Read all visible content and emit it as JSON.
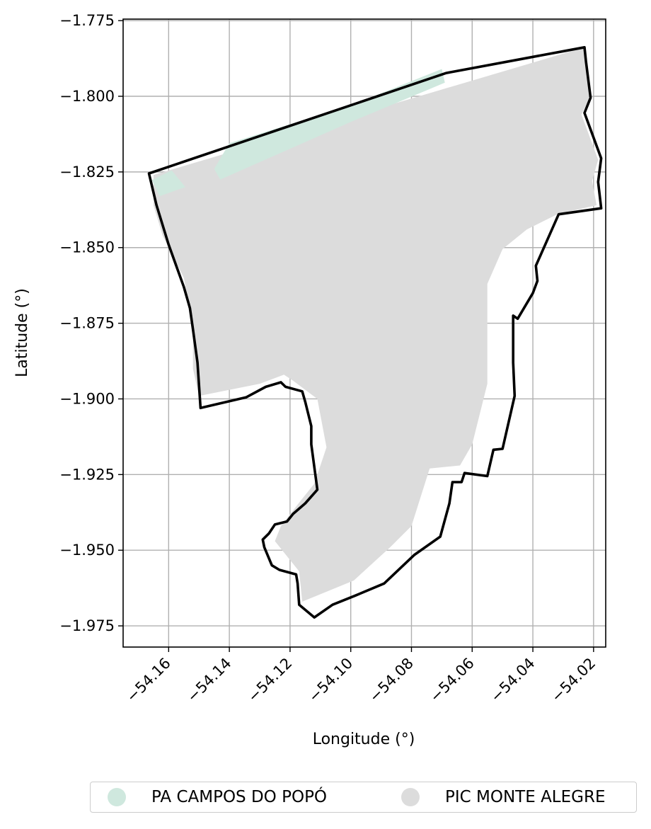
{
  "chart_data": {
    "type": "map",
    "xlabel": "Longitude (°)",
    "ylabel": "Latitude (°)",
    "xlim": [
      -54.175,
      -54.016
    ],
    "ylim": [
      -1.982,
      -1.7745
    ],
    "grid": true,
    "xticks": [
      -54.16,
      -54.14,
      -54.12,
      -54.1,
      -54.08,
      -54.06,
      -54.04,
      -54.02
    ],
    "xtick_labels": [
      "−54.16",
      "−54.14",
      "−54.12",
      "−54.10",
      "−54.08",
      "−54.06",
      "−54.04",
      "−54.02"
    ],
    "yticks": [
      -1.775,
      -1.8,
      -1.825,
      -1.85,
      -1.875,
      -1.9,
      -1.925,
      -1.95,
      -1.975
    ],
    "ytick_labels": [
      "−1.775",
      "−1.800",
      "−1.825",
      "−1.850",
      "−1.875",
      "−1.900",
      "−1.925",
      "−1.950",
      "−1.975"
    ],
    "legend_position": "bottom-center",
    "series": [
      {
        "name": "PA CAMPOS DO POPÓ",
        "color": "#cfe8de",
        "polygons": [
          [
            [
              -54.1655,
              -1.8277
            ],
            [
              -54.159,
              -1.8245
            ],
            [
              -54.1545,
              -1.83
            ],
            [
              -54.163,
              -1.833
            ]
          ],
          [
            [
              -54.145,
              -1.824
            ],
            [
              -54.14,
              -1.8155
            ],
            [
              -54.1,
              -1.803
            ],
            [
              -54.07,
              -1.791
            ],
            [
              -54.069,
              -1.7955
            ],
            [
              -54.1,
              -1.8085
            ],
            [
              -54.143,
              -1.8275
            ]
          ]
        ]
      },
      {
        "name": "PIC MONTE ALEGRE",
        "color": "#dcdcdc",
        "polygons": [
          [
            [
              -54.165,
              -1.826
            ],
            [
              -54.023,
              -1.7838
            ],
            [
              -54.0223,
              -1.788
            ],
            [
              -54.0215,
              -1.801
            ],
            [
              -54.024,
              -1.806
            ],
            [
              -54.0185,
              -1.821
            ],
            [
              -54.0205,
              -1.828
            ],
            [
              -54.019,
              -1.836
            ],
            [
              -54.032,
              -1.839
            ],
            [
              -54.042,
              -1.844
            ],
            [
              -54.05,
              -1.8505
            ],
            [
              -54.055,
              -1.862
            ],
            [
              -54.055,
              -1.895
            ],
            [
              -54.06,
              -1.915
            ],
            [
              -54.064,
              -1.922
            ],
            [
              -54.074,
              -1.923
            ],
            [
              -54.08,
              -1.942
            ],
            [
              -54.087,
              -1.949
            ],
            [
              -54.099,
              -1.96
            ],
            [
              -54.116,
              -1.967
            ],
            [
              -54.117,
              -1.957
            ],
            [
              -54.125,
              -1.947
            ],
            [
              -54.123,
              -1.942
            ],
            [
              -54.116,
              -1.933
            ],
            [
              -54.112,
              -1.928
            ],
            [
              -54.108,
              -1.916
            ],
            [
              -54.111,
              -1.9
            ],
            [
              -54.119,
              -1.894
            ],
            [
              -54.122,
              -1.892
            ],
            [
              -54.13,
              -1.895
            ],
            [
              -54.15,
              -1.899
            ],
            [
              -54.152,
              -1.89
            ],
            [
              -54.152,
              -1.876
            ],
            [
              -54.155,
              -1.86
            ],
            [
              -54.162,
              -1.846
            ],
            [
              -54.165,
              -1.836
            ]
          ]
        ]
      }
    ],
    "boundary": {
      "color": "#000000",
      "points": [
        [
          -54.1665,
          -1.8255
        ],
        [
          -54.0685,
          -1.7923
        ],
        [
          -54.023,
          -1.7838
        ],
        [
          -54.0225,
          -1.7885
        ],
        [
          -54.021,
          -1.8005
        ],
        [
          -54.023,
          -1.8055
        ],
        [
          -54.0175,
          -1.8205
        ],
        [
          -54.0185,
          -1.8283
        ],
        [
          -54.0175,
          -1.837
        ],
        [
          -54.0315,
          -1.839
        ],
        [
          -54.039,
          -1.856
        ],
        [
          -54.0385,
          -1.861
        ],
        [
          -54.04,
          -1.865
        ],
        [
          -54.045,
          -1.8735
        ],
        [
          -54.0465,
          -1.8725
        ],
        [
          -54.0465,
          -1.888
        ],
        [
          -54.046,
          -1.899
        ],
        [
          -54.05,
          -1.9165
        ],
        [
          -54.053,
          -1.9168
        ],
        [
          -54.055,
          -1.9255
        ],
        [
          -54.0625,
          -1.9245
        ],
        [
          -54.0635,
          -1.9275
        ],
        [
          -54.0665,
          -1.9275
        ],
        [
          -54.0675,
          -1.9345
        ],
        [
          -54.0705,
          -1.9455
        ],
        [
          -54.079,
          -1.9515
        ],
        [
          -54.089,
          -1.961
        ],
        [
          -54.0985,
          -1.965
        ],
        [
          -54.106,
          -1.968
        ],
        [
          -54.112,
          -1.9722
        ],
        [
          -54.117,
          -1.968
        ],
        [
          -54.1175,
          -1.961
        ],
        [
          -54.118,
          -1.958
        ],
        [
          -54.1235,
          -1.9565
        ],
        [
          -54.126,
          -1.955
        ],
        [
          -54.1285,
          -1.949
        ],
        [
          -54.129,
          -1.9465
        ],
        [
          -54.127,
          -1.9445
        ],
        [
          -54.125,
          -1.9415
        ],
        [
          -54.123,
          -1.941
        ],
        [
          -54.121,
          -1.9405
        ],
        [
          -54.119,
          -1.938
        ],
        [
          -54.115,
          -1.9345
        ],
        [
          -54.111,
          -1.93
        ],
        [
          -54.113,
          -1.915
        ],
        [
          -54.113,
          -1.909
        ],
        [
          -54.115,
          -1.901
        ],
        [
          -54.116,
          -1.8975
        ],
        [
          -54.1215,
          -1.896
        ],
        [
          -54.123,
          -1.8945
        ],
        [
          -54.128,
          -1.896
        ],
        [
          -54.1345,
          -1.8995
        ],
        [
          -54.1495,
          -1.903
        ],
        [
          -54.1505,
          -1.888
        ],
        [
          -54.152,
          -1.877
        ],
        [
          -54.153,
          -1.87
        ],
        [
          -54.155,
          -1.863
        ],
        [
          -54.16,
          -1.849
        ],
        [
          -54.164,
          -1.836
        ],
        [
          -54.1665,
          -1.8255
        ]
      ]
    }
  }
}
